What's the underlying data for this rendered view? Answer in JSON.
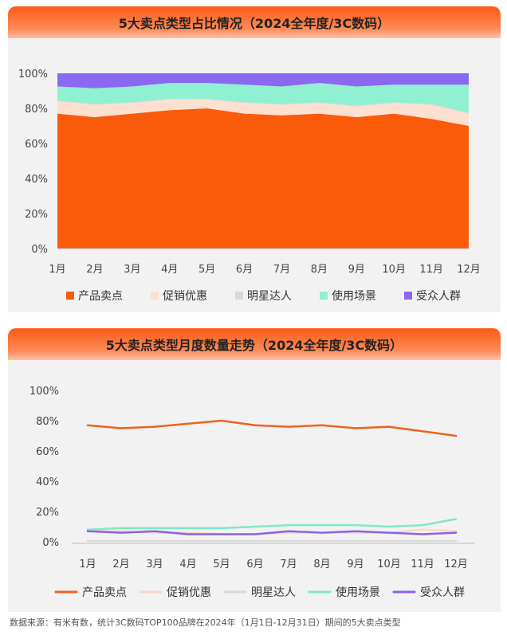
{
  "chart_data": [
    {
      "type": "area",
      "title": "5大卖点类型占比情况（2024全年度/3C数码）",
      "stacked": true,
      "categories": [
        "1月",
        "2月",
        "3月",
        "4月",
        "5月",
        "6月",
        "7月",
        "8月",
        "9月",
        "10月",
        "11月",
        "12月"
      ],
      "yticks": [
        "0%",
        "20%",
        "40%",
        "60%",
        "80%",
        "100%"
      ],
      "ylim": [
        0,
        100
      ],
      "legend_position": "bottom",
      "series": [
        {
          "name": "产品卖点",
          "color": "#f95b0a",
          "values": [
            77,
            75,
            77,
            79,
            80,
            77,
            76,
            77,
            75,
            77,
            74,
            70
          ]
        },
        {
          "name": "促销优惠",
          "color": "#fde0d0",
          "values": [
            7,
            7,
            6,
            6,
            5,
            6,
            6,
            6,
            6,
            6,
            8,
            7
          ]
        },
        {
          "name": "明星达人",
          "color": "#d9d9d9",
          "values": [
            0.5,
            0.5,
            0.5,
            0.5,
            0.5,
            0.5,
            0.5,
            0.5,
            0.5,
            0.5,
            0.5,
            0.5
          ]
        },
        {
          "name": "使用场景",
          "color": "#8ff0d2",
          "values": [
            8,
            9,
            9,
            9,
            9,
            10,
            10,
            11,
            11,
            10,
            11,
            16
          ]
        },
        {
          "name": "受众人群",
          "color": "#8a68f0",
          "values": [
            7.5,
            8.5,
            7.5,
            5.5,
            5.5,
            6.5,
            7.5,
            5.5,
            7.5,
            6.5,
            6.5,
            6.5
          ]
        }
      ]
    },
    {
      "type": "line",
      "title": "5大卖点类型月度数量走势（2024全年度/3C数码）",
      "categories": [
        "1月",
        "2月",
        "3月",
        "4月",
        "5月",
        "6月",
        "7月",
        "8月",
        "9月",
        "10月",
        "11月",
        "12月"
      ],
      "yticks": [
        "0%",
        "20%",
        "40%",
        "60%",
        "80%",
        "100%"
      ],
      "ylim": [
        0,
        100
      ],
      "legend_position": "bottom",
      "series": [
        {
          "name": "产品卖点",
          "color": "#f0611f",
          "values": [
            77,
            75,
            76,
            78,
            80,
            77,
            76,
            77,
            75,
            76,
            73,
            70
          ]
        },
        {
          "name": "促销优惠",
          "color": "#fcd7c3",
          "values": [
            7,
            7,
            6,
            6,
            5,
            5,
            6,
            6,
            6,
            6,
            8,
            7
          ]
        },
        {
          "name": "明星达人",
          "color": "#d9d9d9",
          "values": [
            0.5,
            0.5,
            0.5,
            0.5,
            0.5,
            0.5,
            0.5,
            0.5,
            0.5,
            0.5,
            0.5,
            0.5
          ]
        },
        {
          "name": "使用场景",
          "color": "#7fe8c8",
          "values": [
            8,
            9,
            9,
            9,
            9,
            10,
            11,
            11,
            11,
            10,
            11,
            15
          ]
        },
        {
          "name": "受众人群",
          "color": "#8a63e6",
          "values": [
            7,
            6,
            7,
            5,
            5,
            5,
            7,
            6,
            7,
            6,
            5,
            6
          ]
        }
      ]
    }
  ],
  "footer": {
    "source": "数据来源：有米有数，统计3C数码TOP100品牌在2024年（1月1日-12月31日）期间的5大卖点类型"
  }
}
